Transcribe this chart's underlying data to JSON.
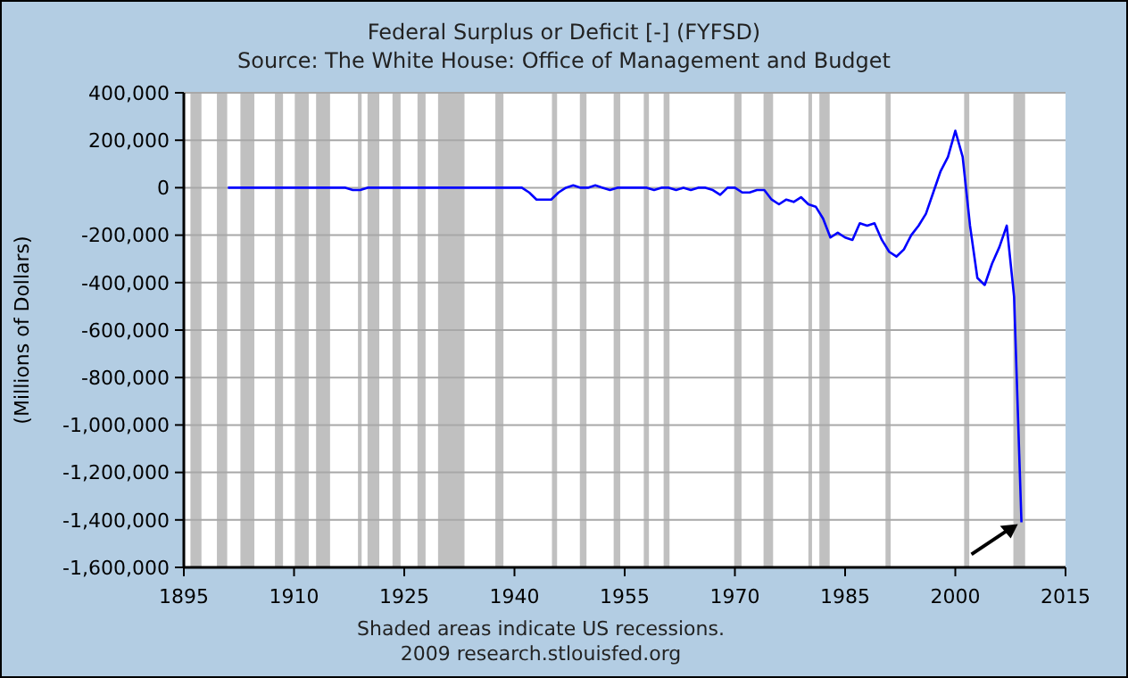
{
  "chart_data": {
    "type": "line",
    "title": "Federal Surplus or Deficit [-] (FYFSD)",
    "subtitle": "Source: The White House: Office of Management and Budget",
    "ylabel": "(Millions of Dollars)",
    "annotations": [
      "Shaded areas indicate US recessions.",
      "2009 research.stlouisfed.org"
    ],
    "x": [
      1901,
      1902,
      1903,
      1904,
      1905,
      1906,
      1907,
      1908,
      1909,
      1910,
      1911,
      1912,
      1913,
      1914,
      1915,
      1916,
      1917,
      1918,
      1919,
      1920,
      1921,
      1922,
      1923,
      1924,
      1925,
      1926,
      1927,
      1928,
      1929,
      1930,
      1931,
      1932,
      1933,
      1934,
      1935,
      1936,
      1937,
      1938,
      1939,
      1940,
      1941,
      1942,
      1943,
      1944,
      1945,
      1946,
      1947,
      1948,
      1949,
      1950,
      1951,
      1952,
      1953,
      1954,
      1955,
      1956,
      1957,
      1958,
      1959,
      1960,
      1961,
      1962,
      1963,
      1964,
      1965,
      1966,
      1967,
      1968,
      1969,
      1970,
      1971,
      1972,
      1973,
      1974,
      1975,
      1976,
      1977,
      1978,
      1979,
      1980,
      1981,
      1982,
      1983,
      1984,
      1985,
      1986,
      1987,
      1988,
      1989,
      1990,
      1991,
      1992,
      1993,
      1994,
      1995,
      1996,
      1997,
      1998,
      1999,
      2000,
      2001,
      2002,
      2003,
      2004,
      2005,
      2006,
      2007,
      2008,
      2009
    ],
    "series": [
      {
        "color": "#0000ff",
        "values": [
          0,
          0,
          0,
          0,
          0,
          0,
          0,
          0,
          0,
          0,
          0,
          0,
          0,
          0,
          0,
          0,
          0,
          -10000,
          -10000,
          0,
          0,
          0,
          0,
          0,
          0,
          0,
          0,
          0,
          0,
          0,
          0,
          0,
          0,
          0,
          0,
          0,
          0,
          0,
          0,
          0,
          0,
          -20000,
          -50000,
          -50000,
          -50000,
          -20000,
          0,
          10000,
          0,
          0,
          10000,
          0,
          -10000,
          0,
          0,
          0,
          0,
          0,
          -10000,
          0,
          0,
          -10000,
          0,
          -10000,
          0,
          0,
          -10000,
          -30000,
          0,
          0,
          -20000,
          -20000,
          -10000,
          -10000,
          -50000,
          -70000,
          -50000,
          -60000,
          -40000,
          -70000,
          -80000,
          -130000,
          -210000,
          -190000,
          -210000,
          -220000,
          -150000,
          -160000,
          -150000,
          -220000,
          -270000,
          -290000,
          -260000,
          -200000,
          -160000,
          -110000,
          -20000,
          70000,
          130000,
          240000,
          130000,
          -160000,
          -380000,
          -410000,
          -320000,
          -250000,
          -160000,
          -460000,
          -1410000
        ]
      }
    ],
    "xlim": [
      1895,
      2015
    ],
    "xticks": [
      1895,
      1910,
      1925,
      1940,
      1955,
      1970,
      1985,
      2000,
      2015
    ],
    "ylim": [
      -1600000,
      400000
    ],
    "yticks": [
      {
        "value": -1600000,
        "label": "-1,600,000"
      },
      {
        "value": -1400000,
        "label": "-1,400,000"
      },
      {
        "value": -1200000,
        "label": "-1,200,000"
      },
      {
        "value": -1000000,
        "label": "-1,000,000"
      },
      {
        "value": -800000,
        "label": "-800,000"
      },
      {
        "value": -600000,
        "label": "-600,000"
      },
      {
        "value": -400000,
        "label": "-400,000"
      },
      {
        "value": -200000,
        "label": "-200,000"
      },
      {
        "value": 0,
        "label": "0"
      },
      {
        "value": 200000,
        "label": "200,000"
      },
      {
        "value": 400000,
        "label": "400,000"
      }
    ],
    "grid": "y",
    "bands": [
      {
        "axis": "x",
        "from": 1895.9,
        "to": 1897.4,
        "color": "#c0c0c0"
      },
      {
        "axis": "x",
        "from": 1899.5,
        "to": 1900.9,
        "color": "#c0c0c0"
      },
      {
        "axis": "x",
        "from": 1902.7,
        "to": 1904.6,
        "color": "#c0c0c0"
      },
      {
        "axis": "x",
        "from": 1907.4,
        "to": 1908.5,
        "color": "#c0c0c0"
      },
      {
        "axis": "x",
        "from": 1910.1,
        "to": 1912.0,
        "color": "#c0c0c0"
      },
      {
        "axis": "x",
        "from": 1913.0,
        "to": 1914.9,
        "color": "#c0c0c0"
      },
      {
        "axis": "x",
        "from": 1918.7,
        "to": 1919.2,
        "color": "#c0c0c0"
      },
      {
        "axis": "x",
        "from": 1920.0,
        "to": 1921.6,
        "color": "#c0c0c0"
      },
      {
        "axis": "x",
        "from": 1923.4,
        "to": 1924.5,
        "color": "#c0c0c0"
      },
      {
        "axis": "x",
        "from": 1926.8,
        "to": 1927.9,
        "color": "#c0c0c0"
      },
      {
        "axis": "x",
        "from": 1929.6,
        "to": 1933.2,
        "color": "#c0c0c0"
      },
      {
        "axis": "x",
        "from": 1937.4,
        "to": 1938.5,
        "color": "#c0c0c0"
      },
      {
        "axis": "x",
        "from": 1945.1,
        "to": 1945.8,
        "color": "#c0c0c0"
      },
      {
        "axis": "x",
        "from": 1948.9,
        "to": 1949.8,
        "color": "#c0c0c0"
      },
      {
        "axis": "x",
        "from": 1953.5,
        "to": 1954.4,
        "color": "#c0c0c0"
      },
      {
        "axis": "x",
        "from": 1957.6,
        "to": 1958.3,
        "color": "#c0c0c0"
      },
      {
        "axis": "x",
        "from": 1960.3,
        "to": 1961.1,
        "color": "#c0c0c0"
      },
      {
        "axis": "x",
        "from": 1969.9,
        "to": 1970.9,
        "color": "#c0c0c0"
      },
      {
        "axis": "x",
        "from": 1973.9,
        "to": 1975.2,
        "color": "#c0c0c0"
      },
      {
        "axis": "x",
        "from": 1980.0,
        "to": 1980.5,
        "color": "#c0c0c0"
      },
      {
        "axis": "x",
        "from": 1981.5,
        "to": 1982.9,
        "color": "#c0c0c0"
      },
      {
        "axis": "x",
        "from": 1990.5,
        "to": 1991.2,
        "color": "#c0c0c0"
      },
      {
        "axis": "x",
        "from": 2001.2,
        "to": 2001.9,
        "color": "#c0c0c0"
      },
      {
        "axis": "x",
        "from": 2007.9,
        "to": 2009.5,
        "color": "#c0c0c0"
      }
    ]
  }
}
